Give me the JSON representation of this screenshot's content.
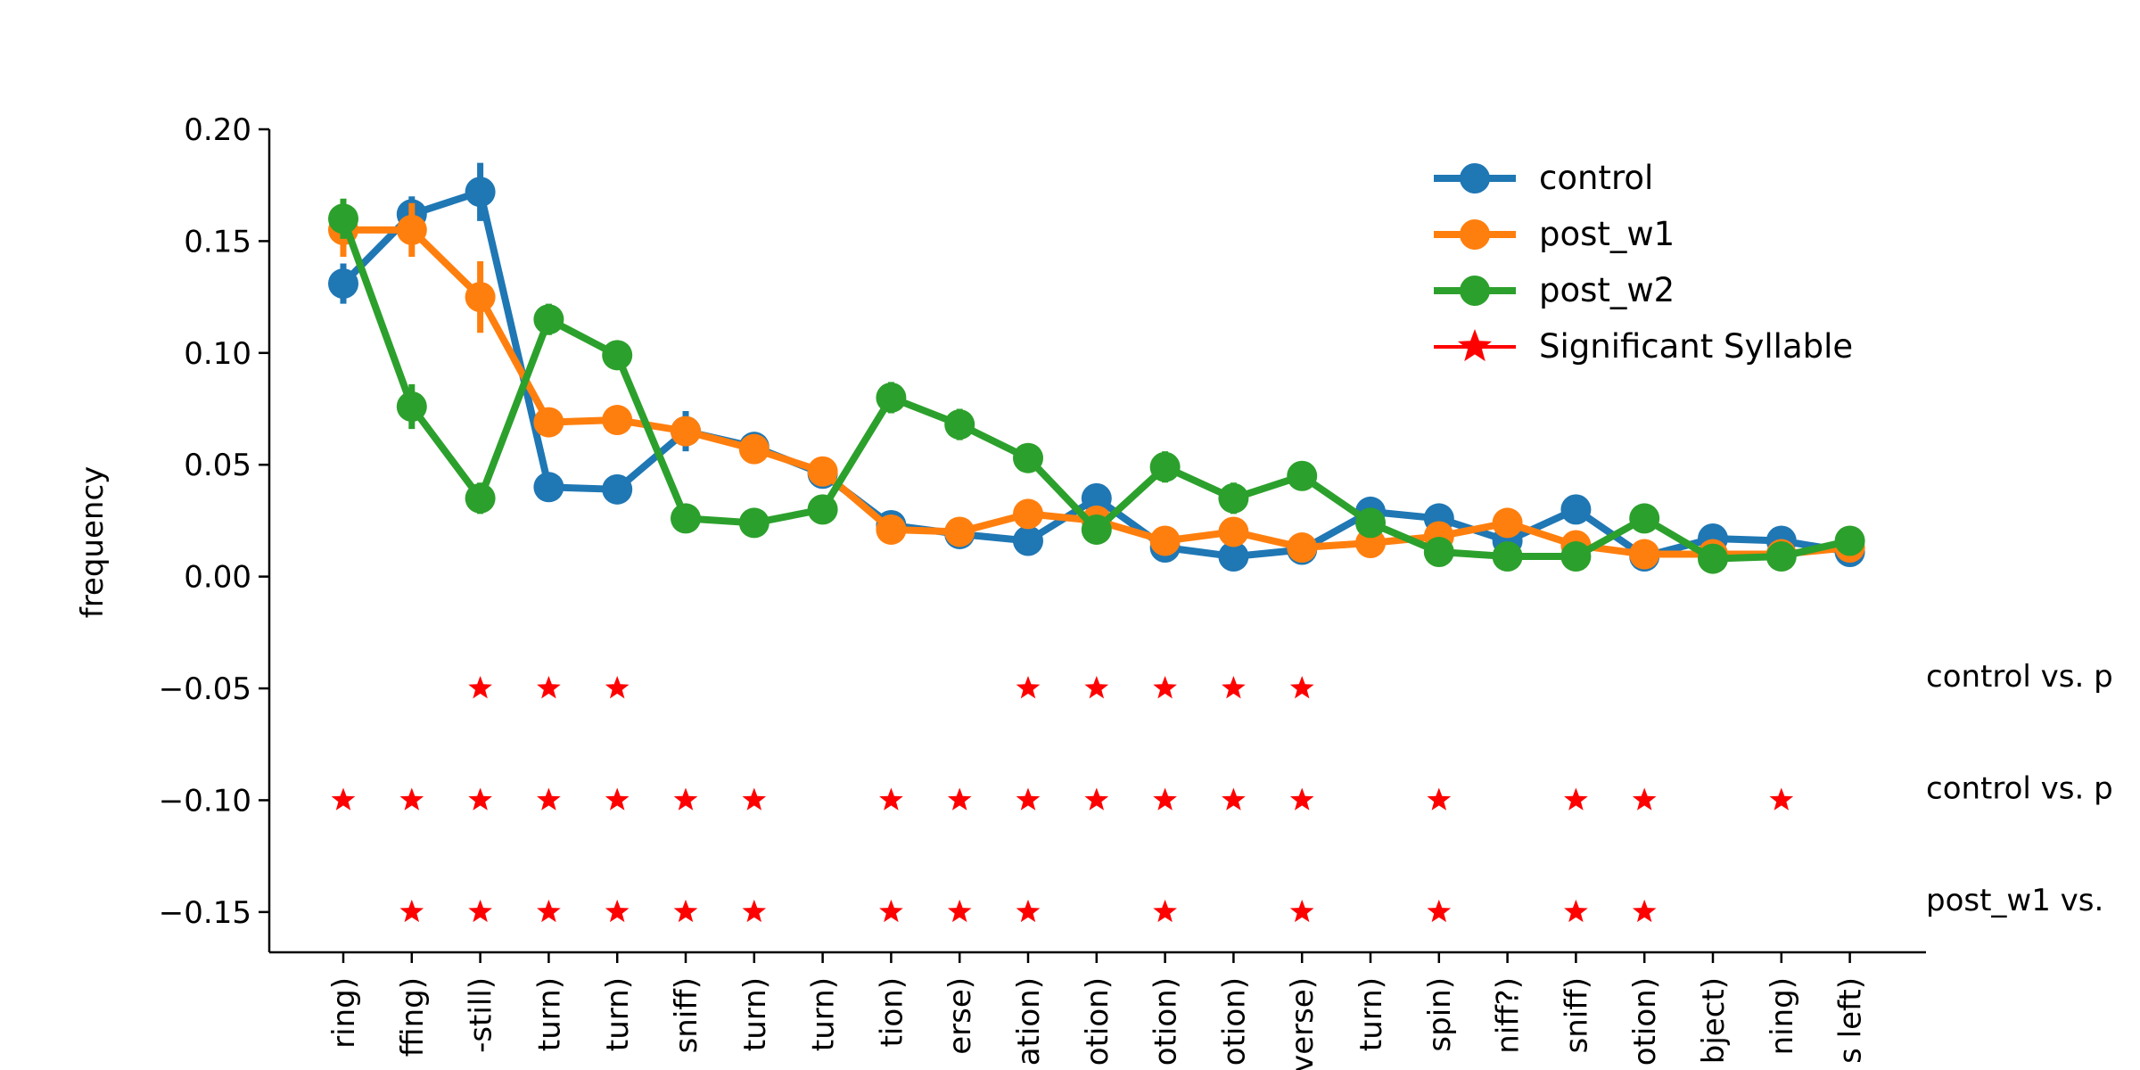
{
  "chart_data": {
    "type": "line",
    "ylabel": "frequency",
    "ylim": [
      -0.168,
      0.2
    ],
    "yticks": [
      0.2,
      0.15,
      0.1,
      0.05,
      0.0,
      -0.05,
      -0.1,
      -0.15
    ],
    "ytick_labels": [
      "0.20",
      "0.15",
      "0.10",
      "0.05",
      "0.00",
      "−0.05",
      "−0.10",
      "−0.15"
    ],
    "categories": [
      "ring)",
      "ffing)",
      "-still)",
      "turn)",
      "turn)",
      "sniff)",
      "turn)",
      "turn)",
      "tion)",
      "erse)",
      "ation)",
      "otion)",
      "otion)",
      "otion)",
      "verse)",
      "turn)",
      "spin)",
      "niff?)",
      "sniff)",
      "otion)",
      "bject)",
      "ning)",
      "s left)"
    ],
    "series": [
      {
        "name": "control",
        "color": "#1f77b4",
        "values": [
          0.131,
          0.162,
          0.172,
          0.04,
          0.039,
          0.065,
          0.058,
          0.046,
          0.023,
          0.019,
          0.016,
          0.035,
          0.013,
          0.009,
          0.012,
          0.029,
          0.026,
          0.016,
          0.03,
          0.009,
          0.017,
          0.016,
          0.011
        ],
        "errors": [
          0.009,
          0.008,
          0.013,
          0.004,
          0.004,
          0.009,
          0.006,
          0.005,
          0.003,
          0.003,
          0.003,
          0.004,
          0.002,
          0.002,
          0.002,
          0.004,
          0.003,
          0.003,
          0.004,
          0.002,
          0.002,
          0.002,
          0.002
        ]
      },
      {
        "name": "post_w1",
        "color": "#ff7f0e",
        "values": [
          0.155,
          0.155,
          0.125,
          0.069,
          0.07,
          0.065,
          0.057,
          0.047,
          0.021,
          0.02,
          0.028,
          0.025,
          0.016,
          0.02,
          0.013,
          0.015,
          0.018,
          0.024,
          0.014,
          0.01,
          0.01,
          0.01,
          0.013
        ],
        "errors": [
          0.012,
          0.012,
          0.016,
          0.006,
          0.006,
          0.006,
          0.006,
          0.005,
          0.003,
          0.003,
          0.004,
          0.004,
          0.003,
          0.003,
          0.002,
          0.003,
          0.003,
          0.005,
          0.003,
          0.002,
          0.002,
          0.002,
          0.002
        ]
      },
      {
        "name": "post_w2",
        "color": "#2ca02c",
        "values": [
          0.16,
          0.076,
          0.035,
          0.115,
          0.099,
          0.026,
          0.024,
          0.03,
          0.08,
          0.068,
          0.053,
          0.021,
          0.049,
          0.035,
          0.045,
          0.024,
          0.011,
          0.009,
          0.009,
          0.026,
          0.008,
          0.009,
          0.016
        ],
        "errors": [
          0.009,
          0.01,
          0.007,
          0.007,
          0.006,
          0.004,
          0.005,
          0.005,
          0.007,
          0.007,
          0.005,
          0.005,
          0.007,
          0.007,
          0.005,
          0.004,
          0.003,
          0.002,
          0.002,
          0.004,
          0.002,
          0.002,
          0.002
        ]
      }
    ],
    "significance": [
      {
        "label": "control vs. p",
        "y": -0.05,
        "indices": [
          2,
          3,
          4,
          10,
          11,
          12,
          13,
          14
        ]
      },
      {
        "label": "control vs. p",
        "y": -0.1,
        "indices": [
          0,
          1,
          2,
          3,
          4,
          5,
          6,
          8,
          9,
          10,
          11,
          12,
          13,
          14,
          16,
          18,
          19,
          21
        ]
      },
      {
        "label": "post_w1 vs.",
        "y": -0.15,
        "indices": [
          1,
          2,
          3,
          4,
          5,
          6,
          8,
          9,
          10,
          12,
          14,
          16,
          18,
          19
        ]
      }
    ],
    "significance_color": "#ff0000",
    "legend": {
      "placement": "top-right",
      "entries": [
        "control",
        "post_w1",
        "post_w2",
        "Significant Syllable"
      ]
    }
  }
}
